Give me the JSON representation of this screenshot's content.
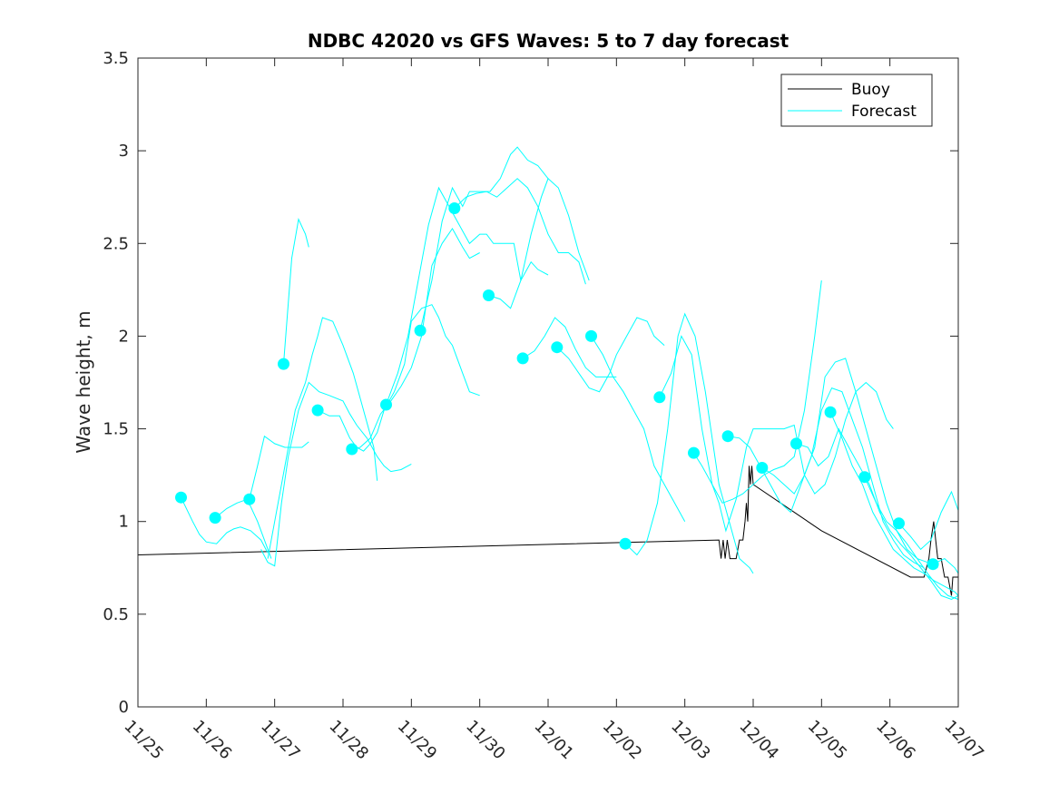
{
  "chart_data": {
    "type": "line",
    "title": "NDBC 42020 vs GFS Waves: 5 to 7 day forecast",
    "xlabel": "",
    "ylabel": "Wave height, m",
    "x_unit": "days since 11/25 00:00",
    "xlim": [
      0,
      12
    ],
    "ylim": [
      0,
      3.5
    ],
    "x_ticks": [
      0,
      1,
      2,
      3,
      4,
      5,
      6,
      7,
      8,
      9,
      10,
      11,
      12
    ],
    "x_tick_labels": [
      "11/25",
      "11/26",
      "11/27",
      "11/28",
      "11/29",
      "11/30",
      "12/01",
      "12/02",
      "12/03",
      "12/04",
      "12/05",
      "12/06",
      "12/07"
    ],
    "y_ticks": [
      0,
      0.5,
      1,
      1.5,
      2,
      2.5,
      3,
      3.5
    ],
    "y_tick_labels": [
      "0",
      "0.5",
      "1",
      "1.5",
      "2",
      "2.5",
      "3",
      "3.5"
    ],
    "grid": false,
    "legend": {
      "position": "top-right",
      "entries": [
        {
          "label": "Buoy",
          "color": "#000000"
        },
        {
          "label": "Forecast",
          "color": "#00ffff"
        }
      ]
    },
    "colors": {
      "buoy": "#000000",
      "forecast": "#00ffff"
    },
    "buoy": {
      "name": "Buoy",
      "x": [
        0,
        8.5,
        8.53,
        8.56,
        8.59,
        8.62,
        8.66,
        8.75,
        8.8,
        8.85,
        8.88,
        8.9,
        8.92,
        8.94,
        8.96,
        8.98,
        9.0,
        10.0,
        11.3,
        11.5,
        11.57,
        11.6,
        11.64,
        11.67,
        11.7,
        11.75,
        11.8,
        11.85,
        11.9,
        11.92,
        11.95,
        12.0
      ],
      "y": [
        0.82,
        0.9,
        0.8,
        0.9,
        0.8,
        0.9,
        0.8,
        0.8,
        0.9,
        0.9,
        1.0,
        1.1,
        1.0,
        1.3,
        1.2,
        1.3,
        1.2,
        0.95,
        0.7,
        0.7,
        0.8,
        0.9,
        1.0,
        0.9,
        0.8,
        0.8,
        0.7,
        0.7,
        0.6,
        0.7,
        0.7,
        0.7
      ]
    },
    "forecast_series": [
      {
        "name": "Forecast",
        "x": [
          0.63,
          0.8,
          0.9,
          1.0,
          1.15,
          1.3,
          1.4,
          1.5,
          1.65,
          1.8,
          1.9
        ],
        "y": [
          1.13,
          1.0,
          0.93,
          0.89,
          0.88,
          0.94,
          0.96,
          0.97,
          0.95,
          0.9,
          0.83
        ]
      },
      {
        "name": "Forecast",
        "x": [
          1.13,
          1.3,
          1.45,
          1.6,
          1.75,
          1.85,
          1.95
        ],
        "y": [
          1.02,
          1.07,
          1.1,
          1.12,
          1.0,
          0.9,
          0.8
        ]
      },
      {
        "name": "Forecast",
        "x": [
          1.63,
          1.75,
          1.85,
          2.0,
          2.15,
          2.3,
          2.4,
          2.5
        ],
        "y": [
          1.12,
          1.3,
          1.46,
          1.42,
          1.4,
          1.4,
          1.4,
          1.43
        ]
      },
      {
        "name": "Forecast",
        "x": [
          2.13,
          2.25,
          2.35,
          2.45,
          2.5
        ],
        "y": [
          1.85,
          2.42,
          2.63,
          2.55,
          2.48
        ]
      },
      {
        "name": "Forecast",
        "x": [
          1.8,
          1.9,
          2.0,
          2.1,
          2.2,
          2.35,
          2.5,
          2.65,
          2.8,
          3.0,
          3.1,
          3.2,
          3.35,
          3.5,
          3.6,
          3.7,
          3.85,
          4.0
        ],
        "y": [
          0.85,
          0.78,
          0.76,
          1.1,
          1.35,
          1.6,
          1.75,
          1.7,
          1.68,
          1.65,
          1.58,
          1.52,
          1.45,
          1.35,
          1.3,
          1.27,
          1.28,
          1.31
        ]
      },
      {
        "name": "Forecast",
        "x": [
          1.9,
          2.0,
          2.15,
          2.3,
          2.45,
          2.55,
          2.63,
          2.7,
          2.85,
          3.0,
          3.15,
          3.3,
          3.45,
          3.5
        ],
        "y": [
          0.8,
          1.0,
          1.3,
          1.6,
          1.75,
          1.9,
          2.0,
          2.1,
          2.08,
          1.95,
          1.8,
          1.6,
          1.4,
          1.22
        ]
      },
      {
        "name": "Forecast",
        "x": [
          2.63,
          2.8,
          2.95,
          3.1,
          3.2,
          3.3,
          3.4,
          3.5,
          3.6,
          3.75,
          3.9,
          4.0,
          4.15,
          4.3,
          4.4,
          4.5,
          4.6,
          4.75,
          4.85,
          5.0
        ],
        "y": [
          1.6,
          1.57,
          1.57,
          1.45,
          1.4,
          1.38,
          1.42,
          1.48,
          1.6,
          1.7,
          1.85,
          2.08,
          2.15,
          2.17,
          2.1,
          2.0,
          1.95,
          1.8,
          1.7,
          1.68
        ]
      },
      {
        "name": "Forecast",
        "x": [
          3.13,
          3.25,
          3.4,
          3.55,
          3.7,
          3.85,
          4.0,
          4.15,
          4.3,
          4.45,
          4.6,
          4.75,
          4.85,
          5.0
        ],
        "y": [
          1.39,
          1.4,
          1.45,
          1.58,
          1.65,
          1.73,
          1.83,
          2.0,
          2.38,
          2.5,
          2.58,
          2.48,
          2.42,
          2.45
        ]
      },
      {
        "name": "Forecast",
        "x": [
          3.63,
          3.8,
          3.95,
          4.1,
          4.25,
          4.4,
          4.55,
          4.7,
          4.85,
          5.0,
          5.1,
          5.2,
          5.35,
          5.5,
          5.6,
          5.75,
          5.85,
          6.0
        ],
        "y": [
          1.63,
          1.8,
          2.0,
          2.3,
          2.6,
          2.8,
          2.7,
          2.6,
          2.5,
          2.55,
          2.55,
          2.5,
          2.5,
          2.5,
          2.3,
          2.4,
          2.36,
          2.33
        ]
      },
      {
        "name": "Forecast",
        "x": [
          4.13,
          4.3,
          4.45,
          4.6,
          4.75,
          4.85,
          5.0,
          5.15,
          5.3,
          5.45,
          5.55,
          5.7,
          5.85,
          6.0
        ],
        "y": [
          2.03,
          2.3,
          2.62,
          2.8,
          2.7,
          2.78,
          2.78,
          2.78,
          2.85,
          2.98,
          3.02,
          2.95,
          2.92,
          2.85
        ]
      },
      {
        "name": "Forecast",
        "x": [
          4.63,
          4.8,
          4.95,
          5.1,
          5.25,
          5.4,
          5.55,
          5.7,
          5.85,
          6.0,
          6.15,
          6.3,
          6.45,
          6.55
        ],
        "y": [
          2.69,
          2.75,
          2.77,
          2.78,
          2.75,
          2.8,
          2.85,
          2.8,
          2.7,
          2.55,
          2.45,
          2.45,
          2.4,
          2.28
        ]
      },
      {
        "name": "Forecast",
        "x": [
          5.13,
          5.3,
          5.45,
          5.6,
          5.75,
          5.9,
          6.0,
          6.15,
          6.3,
          6.45,
          6.6
        ],
        "y": [
          2.22,
          2.2,
          2.15,
          2.3,
          2.55,
          2.75,
          2.85,
          2.8,
          2.65,
          2.45,
          2.3
        ]
      },
      {
        "name": "Forecast",
        "x": [
          5.63,
          5.8,
          5.95,
          6.1,
          6.25,
          6.4,
          6.55,
          6.7,
          6.85,
          7.0
        ],
        "y": [
          1.88,
          1.92,
          2.0,
          2.1,
          2.05,
          1.93,
          1.83,
          1.78,
          1.78,
          1.78
        ]
      },
      {
        "name": "Forecast",
        "x": [
          6.13,
          6.3,
          6.45,
          6.6,
          6.75,
          6.9,
          7.0,
          7.15,
          7.3,
          7.45,
          7.55,
          7.7
        ],
        "y": [
          1.94,
          1.88,
          1.8,
          1.72,
          1.7,
          1.8,
          1.9,
          2.0,
          2.1,
          2.08,
          2.0,
          1.95
        ]
      },
      {
        "name": "Forecast",
        "x": [
          6.63,
          6.8,
          6.95,
          7.1,
          7.25,
          7.4,
          7.55,
          7.7,
          7.85,
          8.0
        ],
        "y": [
          2.0,
          1.9,
          1.78,
          1.7,
          1.6,
          1.5,
          1.3,
          1.2,
          1.1,
          1.0
        ]
      },
      {
        "name": "Forecast",
        "x": [
          7.13,
          7.3,
          7.45,
          7.6,
          7.75,
          7.9,
          8.0,
          8.15,
          8.3,
          8.5,
          8.65,
          8.8,
          8.95,
          9.0
        ],
        "y": [
          0.88,
          0.82,
          0.9,
          1.1,
          1.5,
          2.0,
          2.12,
          2.0,
          1.7,
          1.2,
          1.0,
          0.8,
          0.75,
          0.72
        ]
      },
      {
        "name": "Forecast",
        "x": [
          7.63,
          7.8,
          7.95,
          8.1,
          8.25,
          8.4,
          8.55,
          8.7,
          8.85,
          9.0,
          9.15,
          9.3,
          9.45,
          9.6,
          9.75,
          9.9,
          10.0
        ],
        "y": [
          1.67,
          1.8,
          2.0,
          1.9,
          1.5,
          1.2,
          1.1,
          1.12,
          1.15,
          1.2,
          1.25,
          1.28,
          1.3,
          1.35,
          1.6,
          2.0,
          2.3
        ]
      },
      {
        "name": "Forecast",
        "x": [
          8.13,
          8.25,
          8.4,
          8.5,
          8.6,
          8.75,
          8.9,
          9.0,
          9.15,
          9.3,
          9.45,
          9.6,
          9.75,
          9.9,
          10.05,
          10.2,
          10.35,
          10.5,
          10.65,
          10.8,
          10.95,
          11.05
        ],
        "y": [
          1.37,
          1.3,
          1.2,
          1.1,
          0.95,
          1.12,
          1.4,
          1.5,
          1.5,
          1.5,
          1.5,
          1.52,
          1.25,
          1.15,
          1.2,
          1.35,
          1.55,
          1.7,
          1.75,
          1.7,
          1.55,
          1.5
        ]
      },
      {
        "name": "Forecast",
        "x": [
          8.63,
          8.8,
          8.95,
          9.1,
          9.25,
          9.4,
          9.55,
          9.7,
          9.85,
          10.0,
          10.15,
          10.3,
          10.45,
          10.6,
          10.75,
          10.9,
          11.05,
          11.2,
          11.35,
          11.5
        ],
        "y": [
          1.46,
          1.45,
          1.4,
          1.3,
          1.2,
          1.1,
          1.05,
          1.2,
          1.35,
          1.6,
          1.72,
          1.7,
          1.55,
          1.4,
          1.2,
          1.0,
          0.9,
          0.82,
          0.78,
          0.75
        ]
      },
      {
        "name": "Forecast",
        "x": [
          9.13,
          9.3,
          9.45,
          9.6,
          9.75,
          9.9,
          10.05,
          10.2,
          10.35,
          10.5,
          10.65,
          10.8,
          10.95,
          11.1,
          11.25,
          11.4,
          11.55,
          11.7
        ],
        "y": [
          1.29,
          1.25,
          1.2,
          1.15,
          1.25,
          1.4,
          1.78,
          1.86,
          1.88,
          1.7,
          1.5,
          1.3,
          1.1,
          0.95,
          0.85,
          0.8,
          0.78,
          0.75
        ]
      },
      {
        "name": "Forecast",
        "x": [
          9.63,
          9.8,
          9.95,
          10.1,
          10.25,
          10.4,
          10.55,
          10.7,
          10.85,
          11.0,
          11.15,
          11.3,
          11.45,
          11.6,
          11.75,
          11.9,
          12.0
        ],
        "y": [
          1.42,
          1.4,
          1.3,
          1.35,
          1.5,
          1.4,
          1.3,
          1.2,
          1.05,
          0.95,
          0.88,
          0.82,
          0.75,
          0.68,
          0.6,
          0.58,
          0.6
        ]
      },
      {
        "name": "Forecast",
        "x": [
          10.13,
          10.3,
          10.45,
          10.6,
          10.75,
          10.9,
          11.05,
          11.2,
          11.35,
          11.5,
          11.65,
          11.8,
          11.95,
          12.0
        ],
        "y": [
          1.59,
          1.45,
          1.3,
          1.2,
          1.05,
          0.95,
          0.85,
          0.8,
          0.75,
          0.72,
          0.68,
          0.65,
          0.62,
          0.6
        ]
      },
      {
        "name": "Forecast",
        "x": [
          10.63,
          10.8,
          10.95,
          11.1,
          11.25,
          11.4,
          11.55,
          11.7,
          11.85,
          12.0
        ],
        "y": [
          1.24,
          1.1,
          1.0,
          0.95,
          0.88,
          0.8,
          0.72,
          0.65,
          0.6,
          0.58
        ]
      },
      {
        "name": "Forecast",
        "x": [
          11.13,
          11.3,
          11.45,
          11.6,
          11.75,
          11.9,
          12.0
        ],
        "y": [
          0.99,
          0.92,
          0.85,
          0.9,
          1.05,
          1.16,
          1.06
        ]
      },
      {
        "name": "Forecast",
        "x": [
          11.63,
          11.8,
          11.95,
          12.0
        ],
        "y": [
          0.77,
          0.8,
          0.75,
          0.72
        ]
      }
    ],
    "forecast_markers": {
      "name": "Forecast",
      "x": [
        0.63,
        1.13,
        1.63,
        2.13,
        2.63,
        3.13,
        3.63,
        4.13,
        4.63,
        5.13,
        5.63,
        6.13,
        6.63,
        7.13,
        7.63,
        8.13,
        8.63,
        9.13,
        9.63,
        10.13,
        10.63,
        11.13,
        11.63
      ],
      "y": [
        1.13,
        1.02,
        1.12,
        1.85,
        1.6,
        1.39,
        1.63,
        2.03,
        2.69,
        2.22,
        1.88,
        1.94,
        2.0,
        0.88,
        1.67,
        1.37,
        1.46,
        1.29,
        1.42,
        1.59,
        1.24,
        0.99,
        0.77
      ]
    }
  }
}
